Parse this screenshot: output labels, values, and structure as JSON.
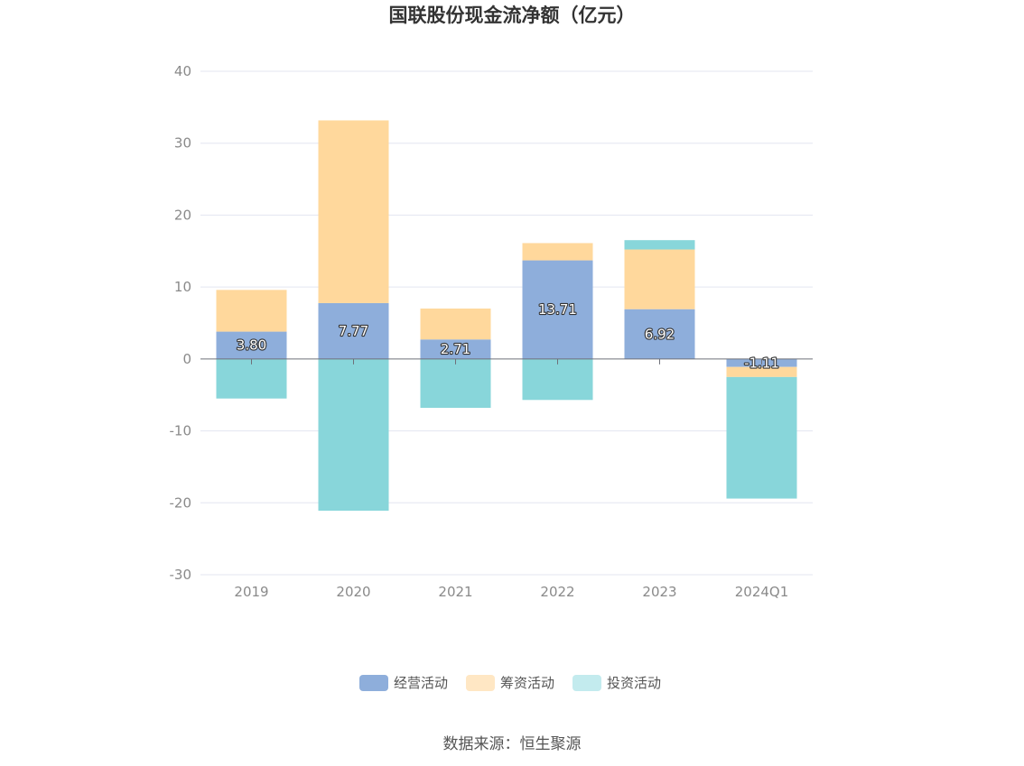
{
  "chart_data": {
    "type": "bar",
    "stacked": true,
    "title": "国联股份现金流净额（亿元）",
    "categories": [
      "2019",
      "2020",
      "2021",
      "2022",
      "2023",
      "2024Q1"
    ],
    "series": [
      {
        "name": "经营活动",
        "color": "#8eaedb",
        "values": [
          3.8,
          7.77,
          2.71,
          13.71,
          6.92,
          -1.11
        ]
      },
      {
        "name": "筹资活动",
        "color": "#ffd89c",
        "values": [
          5.8,
          25.4,
          4.3,
          2.4,
          8.3,
          -1.4
        ]
      },
      {
        "name": "投资活动",
        "color": "#88d6da",
        "values": [
          -5.5,
          -21.1,
          -6.8,
          -5.7,
          1.3,
          -16.9
        ]
      }
    ],
    "data_labels": [
      "3.80",
      "7.77",
      "2.71",
      "13.71",
      "6.92",
      "-1.11"
    ],
    "ylim": [
      -30,
      40
    ],
    "yticks": [
      "-30",
      "-20",
      "-10",
      "0",
      "10",
      "20",
      "30",
      "40"
    ],
    "grid": true,
    "legend_position": "bottom-center",
    "source_text": "数据来源：恒生聚源"
  }
}
